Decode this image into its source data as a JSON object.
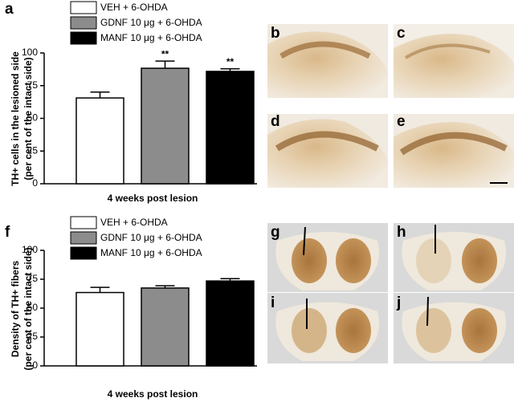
{
  "chart_data": [
    {
      "type": "bar",
      "panel": "a",
      "ylabel": [
        "TH+ cells in the lesioned side",
        "(per cent of the intact side)"
      ],
      "xlabel": "4 weeks post lesion",
      "categories": [
        null
      ],
      "series": [
        {
          "name": "VEH + 6-OHDA",
          "color": "#ffffff",
          "values": [
            65.6
          ],
          "errors": [
            4.5
          ]
        },
        {
          "name": "GDNF 10 μg + 6-OHDA",
          "color": "#8c8c8c",
          "values": [
            88.3
          ],
          "errors": [
            5.5
          ],
          "annotation": "**"
        },
        {
          "name": "MANF 10 μg + 6-OHDA",
          "color": "#000000",
          "values": [
            85.9
          ],
          "errors": [
            2
          ],
          "annotation": "**"
        }
      ],
      "ylim": [
        0,
        100
      ],
      "yticks": [
        0,
        25,
        50,
        75,
        100
      ]
    },
    {
      "type": "bar",
      "panel": "f",
      "ylabel": [
        "Density of TH+ fibers",
        "(per cent of the intact side)"
      ],
      "xlabel": "4 weeks post lesion",
      "categories": [
        null
      ],
      "series": [
        {
          "name": "VEH + 6-OHDA",
          "color": "#ffffff",
          "values": [
            63.5
          ],
          "errors": [
            4.5
          ]
        },
        {
          "name": "GDNF 10 μg + 6-OHDA",
          "color": "#8c8c8c",
          "values": [
            67.4
          ],
          "errors": [
            2
          ]
        },
        {
          "name": "MANF 10 μg + 6-OHDA",
          "color": "#000000",
          "values": [
            73.5
          ],
          "errors": [
            2
          ]
        }
      ],
      "ylim": [
        0,
        100
      ],
      "yticks": [
        0,
        25,
        50,
        75,
        100
      ]
    }
  ],
  "panels": {
    "letters": [
      "b",
      "c",
      "d",
      "e",
      "g",
      "h",
      "i",
      "j"
    ]
  }
}
